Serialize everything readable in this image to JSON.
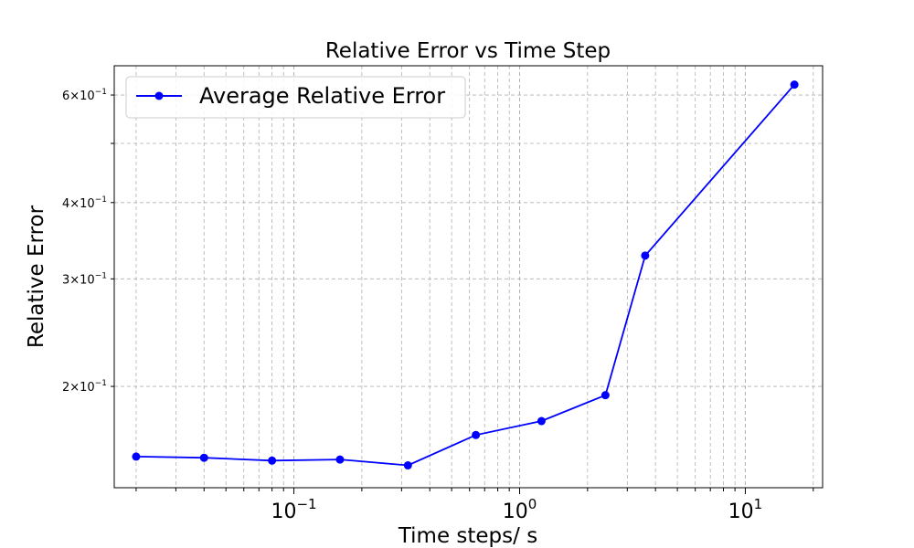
{
  "chart_data": {
    "type": "line",
    "title": "Relative Error vs Time Step",
    "xlabel": "Time steps/ s",
    "ylabel": "Relative Error",
    "xscale": "log",
    "yscale": "log",
    "xlim": [
      0.016,
      22
    ],
    "ylim": [
      0.1365,
      0.67
    ],
    "xtick_labels": [
      {
        "value": 0.1,
        "base": "10",
        "exp": "−1"
      },
      {
        "value": 1,
        "base": "10",
        "exp": "0"
      },
      {
        "value": 10,
        "base": "10",
        "exp": "1"
      }
    ],
    "ytick_labels": [
      {
        "value": 0.2,
        "mantissa": "2",
        "base": "10",
        "exp": "−1"
      },
      {
        "value": 0.3,
        "mantissa": "3",
        "base": "10",
        "exp": "−1"
      },
      {
        "value": 0.4,
        "mantissa": "4",
        "base": "10",
        "exp": "−1"
      },
      {
        "value": 0.6,
        "mantissa": "6",
        "base": "10",
        "exp": "−1"
      }
    ],
    "y_minor_unlabeled": [
      0.5
    ],
    "grid": true,
    "legend_position": "top-left",
    "series": [
      {
        "name": "Average Relative Error",
        "color": "#0000ff",
        "marker": "circle",
        "x": [
          0.02,
          0.04,
          0.08,
          0.16,
          0.32,
          0.64,
          1.25,
          2.4,
          3.6,
          16.5
        ],
        "y": [
          0.1535,
          0.1528,
          0.1512,
          0.1518,
          0.1485,
          0.1665,
          0.1755,
          0.1935,
          0.3275,
          0.624
        ]
      }
    ]
  }
}
